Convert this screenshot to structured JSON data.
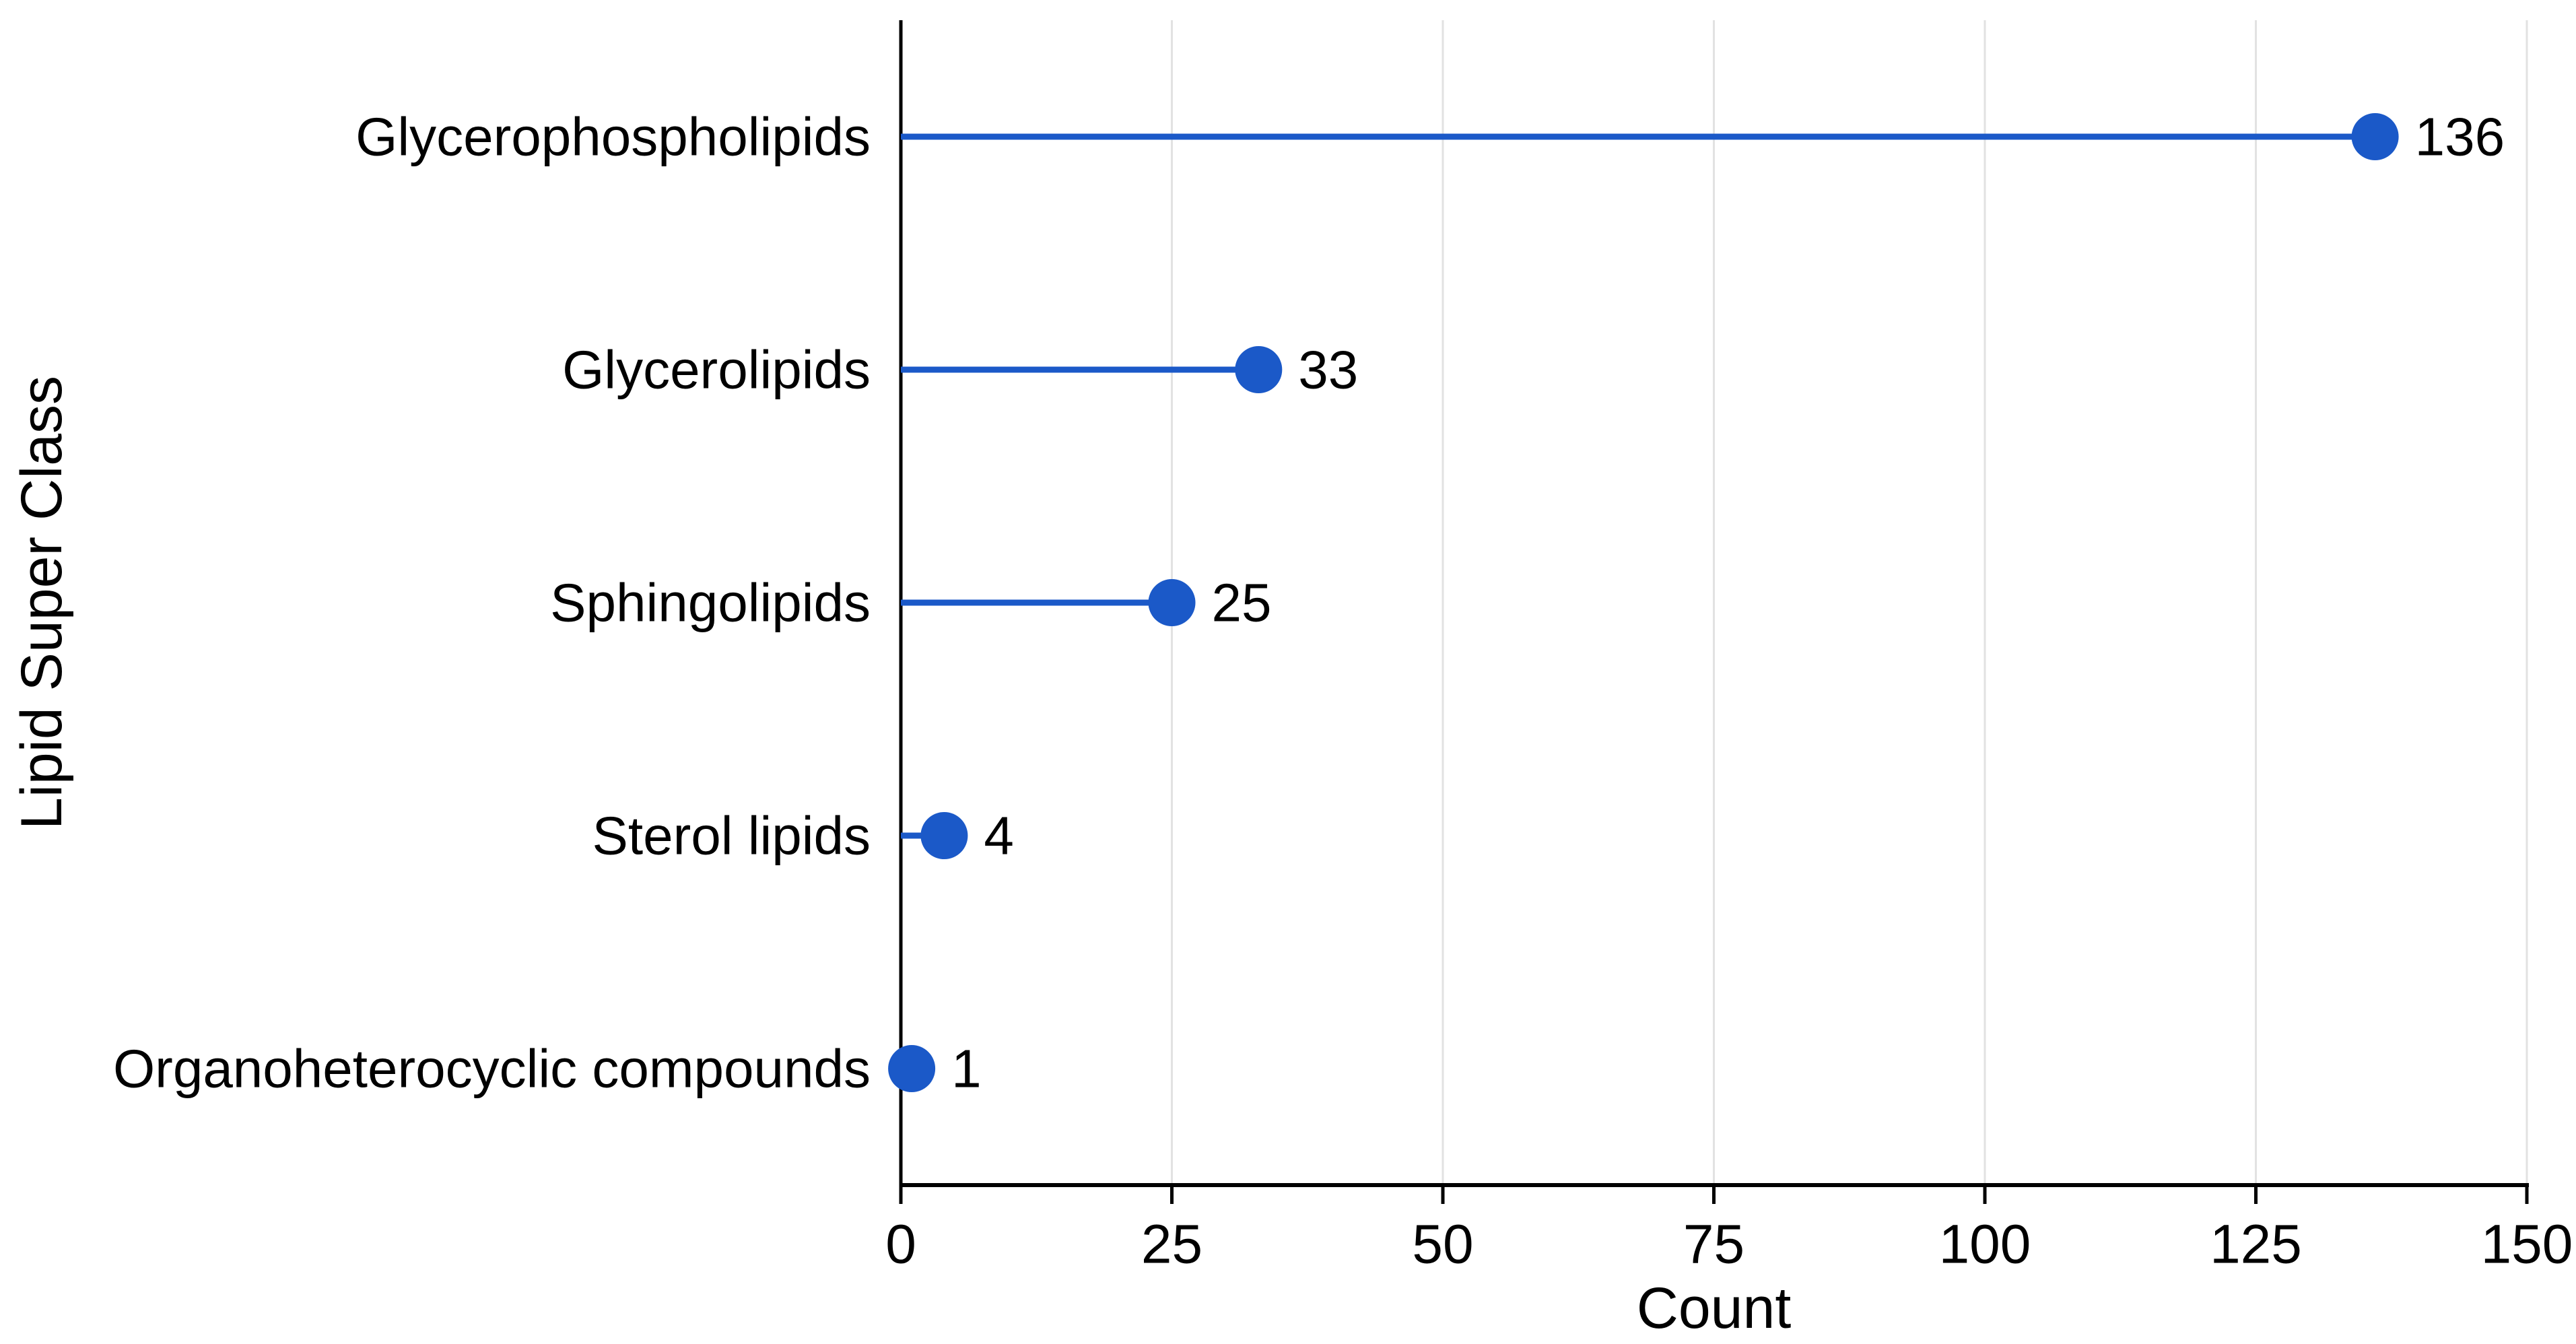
{
  "chart_data": {
    "type": "bar",
    "style": "lollipop",
    "orientation": "horizontal",
    "title": "",
    "xlabel": "Count",
    "ylabel": "Lipid Super Class",
    "categories": [
      "Glycerophospholipids",
      "Glycerolipids",
      "Sphingolipids",
      "Sterol lipids",
      "Organoheterocyclic compounds"
    ],
    "values": [
      136,
      33,
      25,
      4,
      1
    ],
    "value_labels": [
      "136",
      "33",
      "25",
      "4",
      "1"
    ],
    "xlim": [
      0,
      150
    ],
    "xticks": [
      0,
      25,
      50,
      75,
      100,
      125,
      150
    ],
    "grid": "vertical",
    "legend": "none",
    "colors": {
      "marker": "#1b59c8",
      "stem": "#1b59c8",
      "grid": "#e2e2e2",
      "axis": "#000000",
      "text": "#000000",
      "background": "#ffffff"
    }
  }
}
